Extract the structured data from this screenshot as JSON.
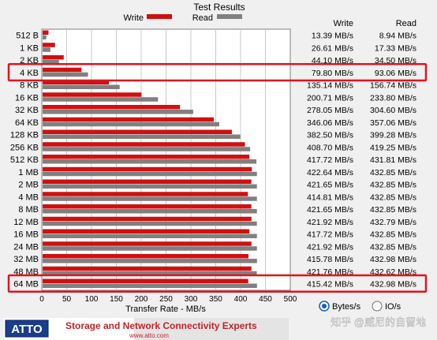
{
  "chart_data": {
    "type": "bar",
    "orientation": "horizontal",
    "title": "Test Results",
    "categories": [
      "512 B",
      "1 KB",
      "2 KB",
      "4 KB",
      "8 KB",
      "16 KB",
      "32 KB",
      "64 KB",
      "128 KB",
      "256 KB",
      "512 KB",
      "1 MB",
      "2 MB",
      "4 MB",
      "8 MB",
      "12 MB",
      "16 MB",
      "24 MB",
      "32 MB",
      "48 MB",
      "64 MB"
    ],
    "series": [
      {
        "name": "Write",
        "color": "#d01010",
        "values": [
          13.39,
          26.61,
          44.1,
          79.8,
          135.14,
          200.71,
          278.05,
          346.06,
          382.5,
          408.7,
          417.72,
          422.64,
          421.65,
          414.81,
          421.65,
          421.92,
          417.72,
          421.92,
          415.78,
          421.76,
          415.42
        ]
      },
      {
        "name": "Read",
        "color": "#808080",
        "values": [
          8.94,
          17.33,
          34.5,
          93.06,
          156.74,
          233.8,
          304.6,
          357.06,
          399.28,
          419.25,
          431.81,
          432.85,
          432.85,
          432.85,
          432.85,
          432.79,
          432.85,
          432.85,
          432.98,
          432.62,
          432.98
        ]
      }
    ],
    "value_labels": {
      "write": [
        "13.39 MB/s",
        "26.61 MB/s",
        "44.10 MB/s",
        "79.80 MB/s",
        "135.14 MB/s",
        "200.71 MB/s",
        "278.05 MB/s",
        "346.06 MB/s",
        "382.50 MB/s",
        "408.70 MB/s",
        "417.72 MB/s",
        "422.64 MB/s",
        "421.65 MB/s",
        "414.81 MB/s",
        "421.65 MB/s",
        "421.92 MB/s",
        "417.72 MB/s",
        "421.92 MB/s",
        "415.78 MB/s",
        "421.76 MB/s",
        "415.42 MB/s"
      ],
      "read": [
        "8.94 MB/s",
        "17.33 MB/s",
        "34.50 MB/s",
        "93.06 MB/s",
        "156.74 MB/s",
        "233.80 MB/s",
        "304.60 MB/s",
        "357.06 MB/s",
        "399.28 MB/s",
        "419.25 MB/s",
        "431.81 MB/s",
        "432.85 MB/s",
        "432.85 MB/s",
        "432.85 MB/s",
        "432.85 MB/s",
        "432.79 MB/s",
        "432.85 MB/s",
        "432.85 MB/s",
        "432.98 MB/s",
        "432.62 MB/s",
        "432.98 MB/s"
      ]
    },
    "column_headers": {
      "write": "Write",
      "read": "Read"
    },
    "xlabel": "Transfer Rate - MB/s",
    "xlim": [
      0,
      500
    ],
    "xticks": [
      "0",
      "50",
      "100",
      "150",
      "200",
      "250",
      "300",
      "350",
      "400",
      "450",
      "500"
    ],
    "grid": true,
    "legend_position": "top",
    "highlighted_rows": [
      "4 KB",
      "64 MB"
    ],
    "highlight_color": "#e0141e"
  },
  "units": {
    "options": [
      "Bytes/s",
      "IO/s"
    ],
    "selected": "Bytes/s"
  },
  "banner": {
    "logo": "ATTO",
    "tagline": "Storage and Network Connectivity Experts",
    "url": "www.atto.com"
  },
  "watermark": "知乎 @威尼的自留地"
}
